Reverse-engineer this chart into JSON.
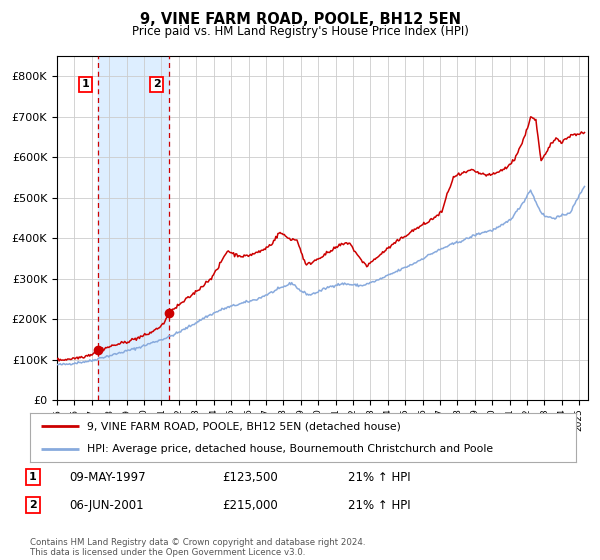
{
  "title": "9, VINE FARM ROAD, POOLE, BH12 5EN",
  "subtitle": "Price paid vs. HM Land Registry's House Price Index (HPI)",
  "legend_line1": "9, VINE FARM ROAD, POOLE, BH12 5EN (detached house)",
  "legend_line2": "HPI: Average price, detached house, Bournemouth Christchurch and Poole",
  "footer": "Contains HM Land Registry data © Crown copyright and database right 2024.\nThis data is licensed under the Open Government Licence v3.0.",
  "table": [
    {
      "num": "1",
      "date": "09-MAY-1997",
      "price": "£123,500",
      "change": "21% ↑ HPI"
    },
    {
      "num": "2",
      "date": "06-JUN-2001",
      "price": "£215,000",
      "change": "21% ↑ HPI"
    }
  ],
  "sale1_year": 1997.35,
  "sale1_price": 123500,
  "sale2_year": 2001.42,
  "sale2_price": 215000,
  "price_color": "#cc0000",
  "hpi_line_color": "#88aadd",
  "shading_color": "#ddeeff",
  "grid_color": "#cccccc",
  "bg_color": "#ffffff",
  "ylim": [
    0,
    850000
  ],
  "xlim_start": 1995.0,
  "xlim_end": 2025.5
}
